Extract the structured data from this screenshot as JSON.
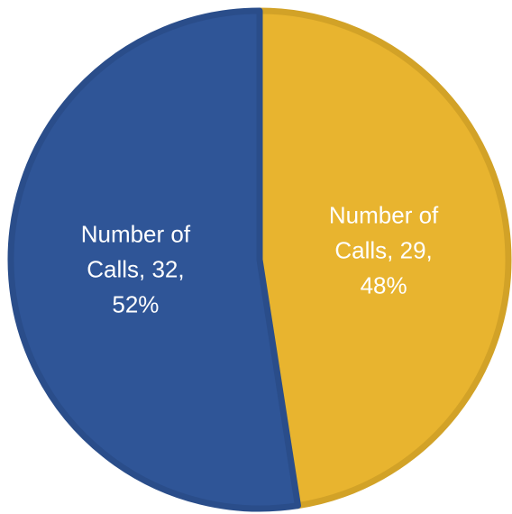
{
  "chart_data": {
    "type": "pie",
    "slices": [
      {
        "category": "Number of Calls",
        "value": 29,
        "percent": "48%",
        "label_lines": [
          "Number of",
          "Calls, 29,",
          "48%"
        ],
        "fill": "#E8B42F",
        "stroke": "#D2A227"
      },
      {
        "category": "Number of Calls",
        "value": 32,
        "percent": "52%",
        "label_lines": [
          "Number of",
          "Calls, 32,",
          "52%"
        ],
        "fill": "#2F5597",
        "stroke": "#2A4D8A"
      }
    ]
  }
}
